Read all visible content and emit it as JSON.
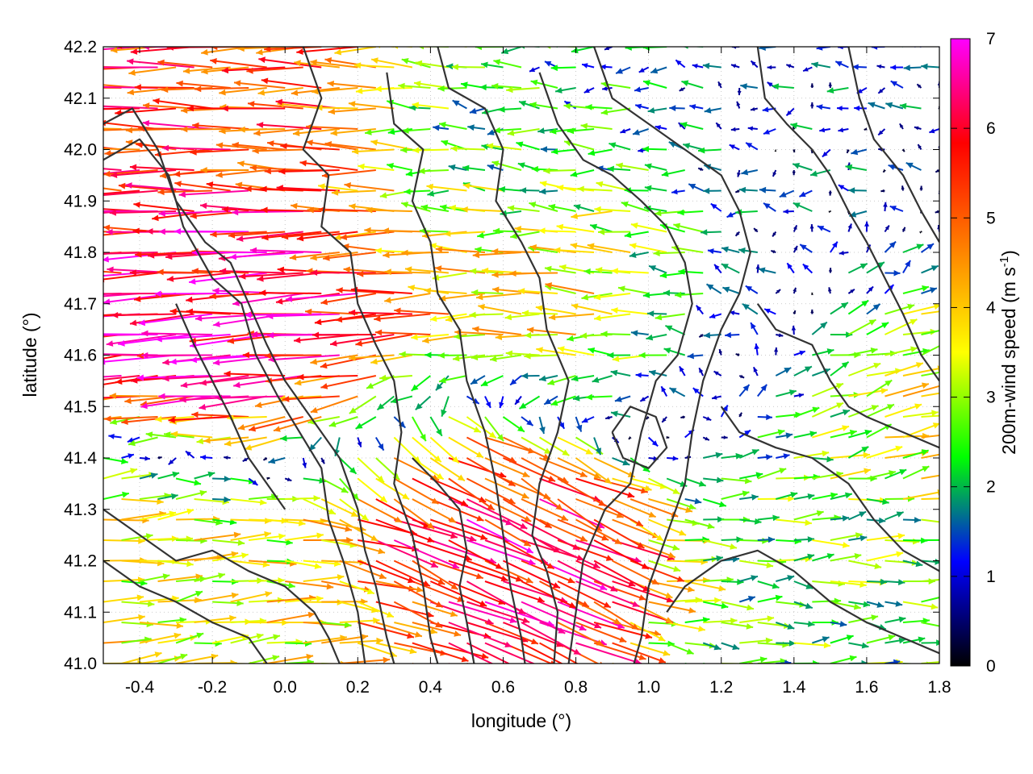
{
  "chart_data": {
    "type": "vector-field",
    "xlabel": "longitude (°)",
    "ylabel": "latitude (°)",
    "xlim": [
      -0.5,
      1.8
    ],
    "ylim": [
      41.0,
      42.2
    ],
    "x_ticks": [
      "-0.4",
      "-0.2",
      "0.0",
      "0.2",
      "0.4",
      "0.6",
      "0.8",
      "1.0",
      "1.2",
      "1.4",
      "1.6",
      "1.8"
    ],
    "x_tick_values": [
      -0.4,
      -0.2,
      0.0,
      0.2,
      0.4,
      0.6,
      0.8,
      1.0,
      1.2,
      1.4,
      1.6,
      1.8
    ],
    "y_ticks": [
      "41.0",
      "41.1",
      "41.2",
      "41.3",
      "41.4",
      "41.5",
      "41.6",
      "41.7",
      "41.8",
      "41.9",
      "42.0",
      "42.1",
      "42.2"
    ],
    "y_tick_values": [
      41.0,
      41.1,
      41.2,
      41.3,
      41.4,
      41.5,
      41.6,
      41.7,
      41.8,
      41.9,
      42.0,
      42.1,
      42.2
    ],
    "colorbar": {
      "label_main": "200m-wind speed (m s",
      "label_sup": "-1",
      "label_end": ")",
      "range": [
        0,
        7
      ],
      "ticks": [
        "0",
        "1",
        "2",
        "3",
        "4",
        "5",
        "6",
        "7"
      ],
      "tick_values": [
        0,
        1,
        2,
        3,
        4,
        5,
        6,
        7
      ],
      "colors": [
        "#000000",
        "#0000ff",
        "#00ff00",
        "#ffff00",
        "#ff8000",
        "#ff0000",
        "#ff00ff"
      ]
    },
    "grid": "dotted",
    "contours": "terrain",
    "contour_color": "#333333",
    "wind_regions": [
      {
        "lon": [
          -0.5,
          0.3
        ],
        "lat": [
          41.85,
          42.2
        ],
        "u": -5.5,
        "v": 0.1
      },
      {
        "lon": [
          -0.5,
          0.5
        ],
        "lat": [
          41.45,
          41.85
        ],
        "u": -6.5,
        "v": -0.4
      },
      {
        "lon": [
          -0.5,
          0.1
        ],
        "lat": [
          41.0,
          41.3
        ],
        "u": 3.5,
        "v": 0.3
      },
      {
        "lon": [
          0.2,
          0.8
        ],
        "lat": [
          41.15,
          41.45
        ],
        "u": 5.5,
        "v": -2.5
      },
      {
        "lon": [
          0.5,
          1.0
        ],
        "lat": [
          41.6,
          41.85
        ],
        "u": -4.5,
        "v": 0.2
      },
      {
        "lon": [
          0.3,
          1.0
        ],
        "lat": [
          41.85,
          42.1
        ],
        "u": -2.0,
        "v": 0.1
      },
      {
        "lon": [
          1.0,
          1.8
        ],
        "lat": [
          41.85,
          42.2
        ],
        "u": -1.0,
        "v": 0.0
      },
      {
        "lon": [
          1.0,
          1.5
        ],
        "lat": [
          41.45,
          41.85
        ],
        "u": -1.5,
        "v": 0.3
      },
      {
        "lon": [
          1.4,
          1.8
        ],
        "lat": [
          41.45,
          41.65
        ],
        "u": 4.0,
        "v": 1.0
      },
      {
        "lon": [
          1.2,
          1.8
        ],
        "lat": [
          41.0,
          41.4
        ],
        "u": 2.5,
        "v": 0.0
      }
    ]
  }
}
